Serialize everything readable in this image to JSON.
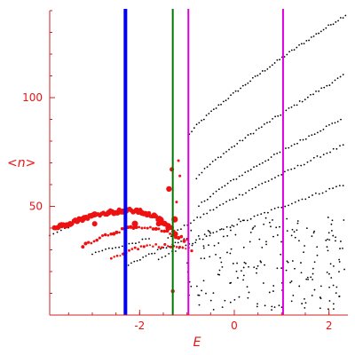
{
  "chart_data": {
    "type": "scatter",
    "xlabel": "E",
    "ylabel": "<n>",
    "xlim": [
      -3.9,
      2.4
    ],
    "ylim": [
      0,
      140
    ],
    "x_ticks": [
      -2,
      0,
      2
    ],
    "y_ticks": [
      50,
      100
    ],
    "x_tick_labels": [
      "-2",
      "0",
      "2"
    ],
    "y_tick_labels": [
      "50",
      "100"
    ],
    "grid": false,
    "colors": {
      "axis": "#cc2222",
      "label": "#ee1111",
      "black_points": "#000000",
      "red_points": "#ee1111",
      "line_blue": "#0000ff",
      "line_green": "#007700",
      "line_magenta": "#dd00dd"
    },
    "vertical_lines": [
      {
        "x": -2.3,
        "color": "#0000ff"
      },
      {
        "x": -1.3,
        "color": "#007700"
      },
      {
        "x": -0.97,
        "color": "#dd00dd"
      },
      {
        "x": 1.03,
        "color": "#dd00dd"
      }
    ],
    "series": [
      {
        "color": "#000000",
        "marker": "dot",
        "bands": [
          {
            "x_start": -0.95,
            "x_end": 2.35,
            "y_start": 83,
            "y_end": 138,
            "n": 65
          },
          {
            "x_start": -0.8,
            "x_end": 2.3,
            "y_start": 63,
            "y_end": 110,
            "n": 55
          },
          {
            "x_start": -0.75,
            "x_end": 2.25,
            "y_start": 50,
            "y_end": 90,
            "n": 50
          },
          {
            "x_start": -1.4,
            "x_end": 2.3,
            "y_start": 35,
            "y_end": 78,
            "n": 55
          },
          {
            "x_start": -1.6,
            "x_end": 2.3,
            "y_start": 25,
            "y_end": 60,
            "n": 55
          },
          {
            "x_start": -2.3,
            "x_end": -1.0,
            "y_start": 22,
            "y_end": 35,
            "n": 22
          },
          {
            "x_start": -3.0,
            "x_end": -1.8,
            "y_start": 28,
            "y_end": 35,
            "n": 18
          },
          {
            "x_start": -3.9,
            "x_end": -3.5,
            "y_start": 36,
            "y_end": 40,
            "n": 6
          }
        ],
        "noise_cloud": {
          "x_range": [
            -1.0,
            2.35
          ],
          "y_range": [
            2,
            45
          ],
          "n": 200
        }
      },
      {
        "color": "#ee1111",
        "marker": "blob",
        "arcs": [
          {
            "x_start": -3.8,
            "x_peak": -2.2,
            "x_end": -1.25,
            "y_start": 40,
            "y_peak": 48,
            "y_end": 38,
            "n": 70,
            "size": 3.0
          },
          {
            "x_start": -3.2,
            "x_peak": -2.0,
            "x_end": -1.0,
            "y_start": 32,
            "y_peak": 40,
            "y_end": 34,
            "n": 38,
            "size": 1.8
          },
          {
            "x_start": -2.6,
            "x_peak": -1.7,
            "x_end": -0.9,
            "y_start": 26,
            "y_peak": 32,
            "y_end": 30,
            "n": 28,
            "size": 1.4
          }
        ],
        "extra_points": [
          {
            "x": -1.32,
            "y": 67,
            "r": 2.5
          },
          {
            "x": -1.38,
            "y": 58,
            "r": 3.2
          },
          {
            "x": -1.26,
            "y": 44,
            "r": 3.6
          },
          {
            "x": -1.4,
            "y": 40,
            "r": 3.0
          },
          {
            "x": -1.18,
            "y": 71,
            "r": 1.5
          },
          {
            "x": -1.15,
            "y": 64,
            "r": 1.5
          },
          {
            "x": -1.22,
            "y": 52,
            "r": 1.5
          },
          {
            "x": -1.3,
            "y": 11,
            "r": 2.2
          },
          {
            "x": -2.1,
            "y": 42,
            "r": 3.5
          },
          {
            "x": -2.95,
            "y": 42,
            "r": 3.0
          },
          {
            "x": -1.6,
            "y": 42,
            "r": 3.0
          }
        ]
      }
    ]
  }
}
